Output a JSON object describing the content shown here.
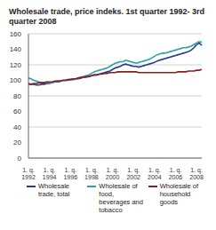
{
  "chart_data": {
    "type": "line",
    "title": "Wholesale trade, price indeks. 1st quarter 1992- 3rd quarter 2008",
    "categories": [
      "1. q. 1992",
      null,
      null,
      null,
      null,
      null,
      null,
      null,
      "1. q. 1994",
      null,
      null,
      null,
      null,
      null,
      null,
      null,
      "1. q. 1996",
      null,
      null,
      null,
      null,
      null,
      null,
      null,
      "1. q. 1998",
      null,
      null,
      null,
      null,
      null,
      null,
      null,
      "1. q. 2000",
      null,
      null,
      null,
      null,
      null,
      null,
      null,
      "1. q. 2002",
      null,
      null,
      null,
      null,
      null,
      null,
      null,
      "1. q. 2004",
      null,
      null,
      null,
      null,
      null,
      null,
      null,
      "1. q. 2006",
      null,
      null,
      null,
      null,
      null,
      null,
      null,
      "1. q. 2008",
      null,
      null
    ],
    "series": [
      {
        "name": "Wholesale trade, total",
        "color": "#233f8c",
        "values": [
          96,
          95,
          95,
          94,
          94,
          95,
          95,
          96,
          96,
          97,
          98,
          98,
          99,
          100,
          100,
          100,
          101,
          101,
          102,
          102,
          103,
          104,
          104,
          105,
          106,
          107,
          107,
          108,
          109,
          110,
          111,
          112,
          114,
          116,
          117,
          118,
          120,
          121,
          120,
          119,
          118,
          118,
          117,
          118,
          119,
          120,
          121,
          122,
          123,
          125,
          126,
          127,
          128,
          129,
          130,
          131,
          132,
          133,
          134,
          135,
          136,
          137,
          139,
          142,
          146,
          148,
          145
        ]
      },
      {
        "name": "Wholesale of food, beverages and tobacco",
        "color": "#2aa5a5",
        "values": [
          103,
          102,
          100,
          99,
          98,
          97,
          97,
          98,
          97,
          97,
          98,
          99,
          99,
          100,
          100,
          101,
          101,
          102,
          102,
          103,
          104,
          105,
          106,
          107,
          109,
          111,
          112,
          113,
          114,
          115,
          116,
          118,
          120,
          122,
          123,
          124,
          124,
          126,
          125,
          124,
          123,
          122,
          123,
          124,
          125,
          126,
          127,
          129,
          131,
          133,
          134,
          135,
          135,
          136,
          137,
          138,
          139,
          140,
          141,
          142,
          142,
          143,
          144,
          146,
          148,
          150,
          149
        ]
      },
      {
        "name": "Wholesale of household goods",
        "color": "#8c1d1d",
        "values": [
          95,
          95,
          96,
          96,
          97,
          97,
          97,
          98,
          98,
          98,
          99,
          99,
          99,
          100,
          100,
          101,
          101,
          102,
          102,
          103,
          104,
          104,
          105,
          105,
          106,
          107,
          107,
          108,
          108,
          109,
          109,
          110,
          110,
          110,
          111,
          111,
          111,
          111,
          111,
          111,
          111,
          111,
          110,
          110,
          110,
          110,
          110,
          110,
          110,
          110,
          110,
          110,
          110,
          110,
          110,
          110,
          110,
          111,
          111,
          111,
          111,
          112,
          112,
          112,
          113,
          113,
          114
        ]
      }
    ],
    "ylim": [
      0,
      160
    ],
    "yticks": [
      0,
      20,
      40,
      60,
      80,
      100,
      120,
      140,
      160
    ],
    "grid": true,
    "legend": "bottom"
  }
}
